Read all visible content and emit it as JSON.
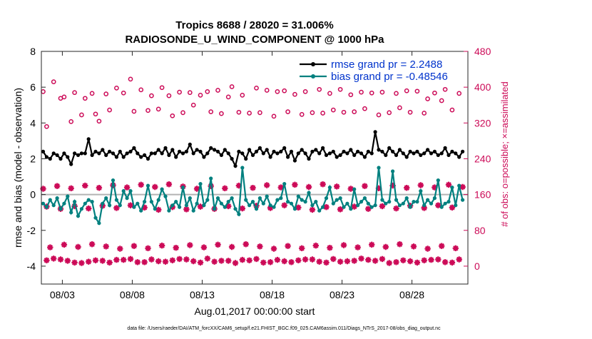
{
  "chart_data": {
    "type": "line",
    "title_line1": "Tropics 8688 / 28020 = 31.006%",
    "title_line2": "RADIOSONDE_U_WIND_COMPONENT @ 1000 hPa",
    "xlabel": "Aug.01,2017 00:00:00 start",
    "ylabel_left": "rmse and bias (model - observation)",
    "ylabel_right": "# of obs: o=possible; ×=assimilated",
    "footnote": "data file: /Users/raeder/DAI/ATM_forcXX/CAM6_setup/f.e21.FHIST_BGC.f09_025.CAM6assim.011/Diags_NTrS_2017-08/obs_diag_output.nc",
    "xlim": [
      1.5,
      32.0
    ],
    "ylim_left": [
      -5,
      8
    ],
    "ylim_right": [
      -40,
      480
    ],
    "xticks": [
      3,
      8,
      13,
      18,
      23,
      28
    ],
    "xtick_labels": [
      "08/03",
      "08/08",
      "08/13",
      "08/18",
      "08/23",
      "08/28"
    ],
    "yticks_left": [
      -4,
      -2,
      0,
      2,
      4,
      6,
      8
    ],
    "yticks_left_labels": [
      "-4",
      "-2",
      "0",
      "2",
      "4",
      "6",
      "8"
    ],
    "yticks_right": [
      0,
      80,
      160,
      240,
      320,
      400,
      480
    ],
    "yticks_right_labels": [
      "0",
      "80",
      "160",
      "240",
      "320",
      "400",
      "480"
    ],
    "legend": [
      {
        "name": "rmse",
        "label": "rmse grand pr = 2.2488",
        "color": "#000000"
      },
      {
        "name": "bias",
        "label": "bias grand pr = -0.48546",
        "color": "#00807f"
      }
    ],
    "colors": {
      "rmse": "#000000",
      "bias": "#00807f",
      "obs": "#cc0a57",
      "zero_line": "#b3b3b3",
      "legend_text": "#0033cc",
      "axis": "#262626"
    },
    "legend_position": "top-right",
    "zero_line_y": 0,
    "x": [
      1.625,
      1.875,
      2.125,
      2.375,
      2.625,
      2.875,
      3.125,
      3.375,
      3.625,
      3.875,
      4.125,
      4.375,
      4.625,
      4.875,
      5.125,
      5.375,
      5.625,
      5.875,
      6.125,
      6.375,
      6.625,
      6.875,
      7.125,
      7.375,
      7.625,
      7.875,
      8.125,
      8.375,
      8.625,
      8.875,
      9.125,
      9.375,
      9.625,
      9.875,
      10.125,
      10.375,
      10.625,
      10.875,
      11.125,
      11.375,
      11.625,
      11.875,
      12.125,
      12.375,
      12.625,
      12.875,
      13.125,
      13.375,
      13.625,
      13.875,
      14.125,
      14.375,
      14.625,
      14.875,
      15.125,
      15.375,
      15.625,
      15.875,
      16.125,
      16.375,
      16.625,
      16.875,
      17.125,
      17.375,
      17.625,
      17.875,
      18.125,
      18.375,
      18.625,
      18.875,
      19.125,
      19.375,
      19.625,
      19.875,
      20.125,
      20.375,
      20.625,
      20.875,
      21.125,
      21.375,
      21.625,
      21.875,
      22.125,
      22.375,
      22.625,
      22.875,
      23.125,
      23.375,
      23.625,
      23.875,
      24.125,
      24.375,
      24.625,
      24.875,
      25.125,
      25.375,
      25.625,
      25.875,
      26.125,
      26.375,
      26.625,
      26.875,
      27.125,
      27.375,
      27.625,
      27.875,
      28.125,
      28.375,
      28.625,
      28.875,
      29.125,
      29.375,
      29.625,
      29.875,
      30.125,
      30.375,
      30.625,
      30.875,
      31.125,
      31.375,
      31.625
    ],
    "series": [
      {
        "name": "rmse",
        "values": [
          2.4,
          2.1,
          2.0,
          2.3,
          2.2,
          2.0,
          2.3,
          2.1,
          1.7,
          2.3,
          2.2,
          2.3,
          2.3,
          3.1,
          2.2,
          2.4,
          2.3,
          2.5,
          2.2,
          2.4,
          2.3,
          2.1,
          2.4,
          2.1,
          2.3,
          2.4,
          2.6,
          2.3,
          2.1,
          2.2,
          2.0,
          2.3,
          2.3,
          2.5,
          2.3,
          2.6,
          2.2,
          2.5,
          2.1,
          2.4,
          2.3,
          2.4,
          2.8,
          2.3,
          2.5,
          2.4,
          2.1,
          2.3,
          2.6,
          2.5,
          2.4,
          2.2,
          2.5,
          2.3,
          2.0,
          1.6,
          2.4,
          2.3,
          2.0,
          2.5,
          2.2,
          2.4,
          2.6,
          2.3,
          2.5,
          2.1,
          2.4,
          2.3,
          2.4,
          2.6,
          2.1,
          2.4,
          1.9,
          2.3,
          2.5,
          2.3,
          2.0,
          2.4,
          2.5,
          2.3,
          2.6,
          2.2,
          2.3,
          2.4,
          2.1,
          2.2,
          2.4,
          2.3,
          2.5,
          2.2,
          2.4,
          2.3,
          2.1,
          2.4,
          2.3,
          3.5,
          2.5,
          2.4,
          2.2,
          2.6,
          2.4,
          2.2,
          2.5,
          2.3,
          2.1,
          2.4,
          2.3,
          2.4,
          2.2,
          2.3,
          2.5,
          2.3,
          2.4,
          2.2,
          2.3,
          2.6,
          2.2,
          2.4,
          2.3,
          2.1,
          2.4
        ]
      },
      {
        "name": "bias",
        "values": [
          -0.5,
          -0.7,
          -0.3,
          -0.6,
          -0.2,
          -0.8,
          -0.5,
          -0.1,
          -1.0,
          -0.4,
          -1.2,
          -0.8,
          -0.5,
          -0.3,
          -0.4,
          -1.3,
          -1.6,
          -0.5,
          -0.2,
          -0.6,
          0.8,
          -0.3,
          -0.6,
          0.2,
          -0.2,
          0.2,
          -0.7,
          -0.5,
          -0.9,
          -0.4,
          0.5,
          -0.4,
          -0.8,
          -0.3,
          0.3,
          -0.1,
          -0.9,
          -0.6,
          -0.4,
          -0.7,
          0.4,
          -0.6,
          -0.2,
          -0.9,
          -0.5,
          0.6,
          -0.6,
          -0.3,
          0.9,
          -0.8,
          -0.2,
          -0.5,
          -0.7,
          -0.4,
          -0.2,
          -0.8,
          -1.1,
          1.5,
          -0.3,
          -0.6,
          -0.4,
          -0.8,
          -0.2,
          -0.5,
          -0.1,
          -0.6,
          -0.7,
          -0.3,
          -0.2,
          0.6,
          -0.4,
          -0.5,
          -0.8,
          -0.1,
          -0.3,
          -0.4,
          0.1,
          -0.6,
          -0.4,
          -0.9,
          -0.7,
          -0.2,
          0.4,
          -0.5,
          -0.3,
          -0.2,
          -0.7,
          -0.5,
          -0.8,
          0.3,
          -0.6,
          -0.4,
          -0.2,
          -0.5,
          -0.7,
          -0.6,
          1.5,
          -0.3,
          -0.5,
          -0.4,
          1.3,
          -0.3,
          -0.6,
          -0.5,
          -0.2,
          -0.7,
          -0.4,
          -0.4,
          0.2,
          -0.6,
          -0.3,
          -0.5,
          -0.2,
          0.8,
          -0.7,
          -0.5,
          -0.4,
          0.4,
          -0.6,
          0.5,
          -0.3
        ]
      },
      {
        "name": "obs_possible",
        "values": [
          390,
          312,
          0,
          412,
          0,
          375,
          378,
          0,
          323,
          388,
          0,
          338,
          375,
          0,
          386,
          340,
          324,
          0,
          385,
          349,
          0,
          398,
          0,
          387,
          0,
          418,
          346,
          0,
          394,
          0,
          348,
          381,
          0,
          351,
          399,
          0,
          381,
          336,
          0,
          389,
          343,
          0,
          388,
          360,
          0,
          382,
          0,
          390,
          345,
          0,
          393,
          341,
          0,
          378,
          401,
          0,
          344,
          382,
          0,
          342,
          0,
          398,
          343,
          0,
          393,
          0,
          335,
          390,
          0,
          392,
          345,
          0,
          384,
          0,
          339,
          390,
          0,
          343,
          0,
          395,
          342,
          0,
          386,
          349,
          0,
          395,
          344,
          0,
          383,
          345,
          0,
          389,
          352,
          0,
          387,
          0,
          338,
          389,
          0,
          343,
          0,
          386,
          354,
          0,
          392,
          344,
          0,
          391,
          0,
          342,
          374,
          0,
          387,
          0,
          370,
          395,
          0,
          349,
          0,
          386,
          0
        ]
      }
    ]
  }
}
